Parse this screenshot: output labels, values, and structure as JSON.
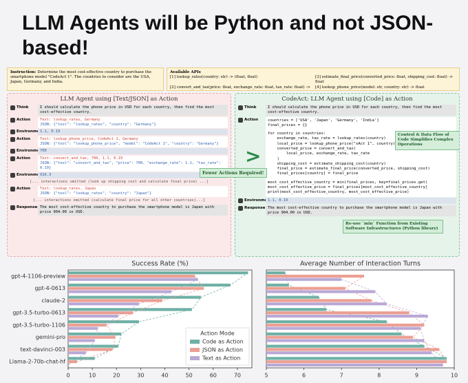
{
  "title": "LLM Agents will be Python and not JSON-based!",
  "diagram": {
    "instruction": {
      "label": "Instruction:",
      "text": "Determine the most cost-effective country to purchase the smartphone model \"CodeAct 1\". The countries to consider are the USA, Japan, Germany, and India."
    },
    "apis": {
      "label": "Available APIs",
      "items": [
        "[1] lookup_rates(country: str) -> (float, float)",
        "[2] convert_and_tax(price: float, exchange_rate: float, tax_rate: float) -> float",
        "[3] estimate_final_price(converted_price: float, shipping_cost: float) -> float",
        "[4] lookup_phone_price(model: str, country: str) -> float",
        "[5] estimate_shipping_cost(destination_country: str) -> float"
      ]
    },
    "left": {
      "title": "LLM Agent using [Text/JSON] as Action",
      "steps": [
        {
          "role": "Think",
          "lines": [
            "I should calculate the phone price in USD for each country, then find the most cost-effective country."
          ]
        },
        {
          "role": "Action",
          "lines": [
            "Text: lookup_rates, Germany",
            "JSON: {\"tool\": \"lookup_rates\", \"country\": \"Germany\"}"
          ]
        },
        {
          "role": "Environment",
          "lines": [
            "1.1, 0.19"
          ]
        },
        {
          "role": "Action",
          "lines": [
            "Text: lookup_phone_price, CodeAct 1, Germany",
            "JSON: {\"tool\": \"lookup_phone_price\", \"model\": \"CodeAct 1\", \"country\": \"Germany\"}"
          ]
        },
        {
          "role": "Environment",
          "lines": [
            "700"
          ]
        },
        {
          "role": "Action",
          "lines": [
            "Text: convert_and_tax, 700, 1.1, 0.19",
            "JSON: {\"tool\": \"convert_and_tax\", \"price\": 700, \"exchange_rate\": 1.1, \"tax_rate\": 0.19}"
          ]
        },
        {
          "role": "Environment",
          "lines": [
            "916.3"
          ]
        },
        {
          "note": "[... interactions omitted (look up shipping cost and calculate final price) ...]"
        },
        {
          "role": "Action",
          "lines": [
            "Text: lookup_rates, Japan",
            "JSON: {\"tool\": \"lookup_rates\", \"country\": \"Japan\"}"
          ]
        },
        {
          "note": "[... interactions omitted (calculate final price for all other countries)...]"
        },
        {
          "role": "Response",
          "lines": [
            "The most cost-effective country to purchase the smartphone model is Japan with price 904.00 in USD."
          ]
        }
      ]
    },
    "middle": {
      "arrow": ">",
      "callout": "Fewer Actions Required!"
    },
    "right": {
      "title": "CodeAct: LLM Agent using [Code] as Action",
      "steps": [
        {
          "role": "Think",
          "lines": [
            "I should calculate the phone price in USD for each country, then find the most cost-effective country."
          ]
        },
        {
          "role": "Action",
          "code": [
            [
              "countries = ['USA', 'Japan', 'Germany', 'India']",
              "final_prices = {}"
            ],
            [
              "for country in countries:",
              "    exchange_rate, tax_rate = lookup_rates(country)",
              "    local_price = lookup_phone_price(\"xAct 1\", country)",
              "    converted_price = convert_and_tax(",
              "        local_price, exchange_rate, tax_rate",
              "    )",
              "    shipping_cost = estimate_shipping_cost(country)",
              "    final_price = estimate_final_price(converted_price, shipping_cost)",
              "    final_prices[country] = final_price"
            ],
            [
              "most_cost_effective_country = min(final_prices, key=final_prices.get)",
              "most_cost_effective_price = final_prices[most_cost_effective_country]",
              "print(most_cost_effective_country, most_cost_effective_price)"
            ]
          ]
        },
        {
          "role": "Environment",
          "lines": [
            "1.1, 0.19"
          ]
        },
        {
          "role": "Response",
          "lines": [
            "The most cost-effective country to purchase the smartphone model is Japan with price 904.00 in USD."
          ]
        }
      ],
      "annotations": [
        "Control & Data Flow of Code Simplifies Complex Operations",
        "Re-use `min` Function from Existing Software Infrastructures (Python library)"
      ]
    }
  },
  "chart_data": [
    {
      "type": "bar",
      "orientation": "horizontal",
      "title": "Success Rate (%)",
      "categories": [
        "gpt-4-1106-preview",
        "gpt-4-0613",
        "claude-2",
        "gpt-3.5-turbo-0613",
        "gpt-3.5-turbo-1106",
        "gemini-pro",
        "text-davinci-003",
        "Llama-2-70b-chat-hf"
      ],
      "series": [
        {
          "name": "Code as Action",
          "color": "#6fb0a6",
          "values": [
            74.4,
            67.1,
            54.9,
            51.2,
            29.3,
            22.0,
            20.7,
            11.0
          ]
        },
        {
          "name": "JSON as Action",
          "color": "#ec9f92",
          "values": [
            52.4,
            56.1,
            39.0,
            26.8,
            15.9,
            19.5,
            18.3,
            3.7
          ]
        },
        {
          "name": "Text as Action",
          "color": "#b9a9d6",
          "values": [
            53.7,
            42.7,
            29.3,
            20.7,
            12.2,
            11.0,
            7.3,
            0.0
          ]
        }
      ],
      "xlim": [
        0,
        76
      ],
      "xticks": [
        0,
        10,
        20,
        30,
        40,
        50,
        60,
        70
      ],
      "legend": "lower right",
      "legend_title": "Action Mode",
      "connector_lines": true
    },
    {
      "type": "bar",
      "orientation": "horizontal",
      "title": "Average Number of Interaction Turns",
      "series": [
        {
          "name": "Code as Action",
          "color": "#6fb0a6",
          "values": [
            5.5,
            5.6,
            6.4,
            6.6,
            8.2,
            8.6,
            9.2,
            9.8
          ]
        },
        {
          "name": "JSON as Action",
          "color": "#ec9f92",
          "values": [
            7.6,
            7.1,
            7.8,
            8.8,
            9.2,
            8.9,
            9.6,
            9.8
          ]
        },
        {
          "name": "Text as Action",
          "color": "#b9a9d6",
          "values": [
            7.0,
            7.9,
            8.2,
            9.3,
            9.1,
            9.2,
            9.4,
            9.7
          ]
        }
      ],
      "xlim": [
        5,
        10
      ],
      "xticks": [
        5,
        6,
        7,
        8,
        9,
        10
      ],
      "connector_lines": true
    }
  ]
}
